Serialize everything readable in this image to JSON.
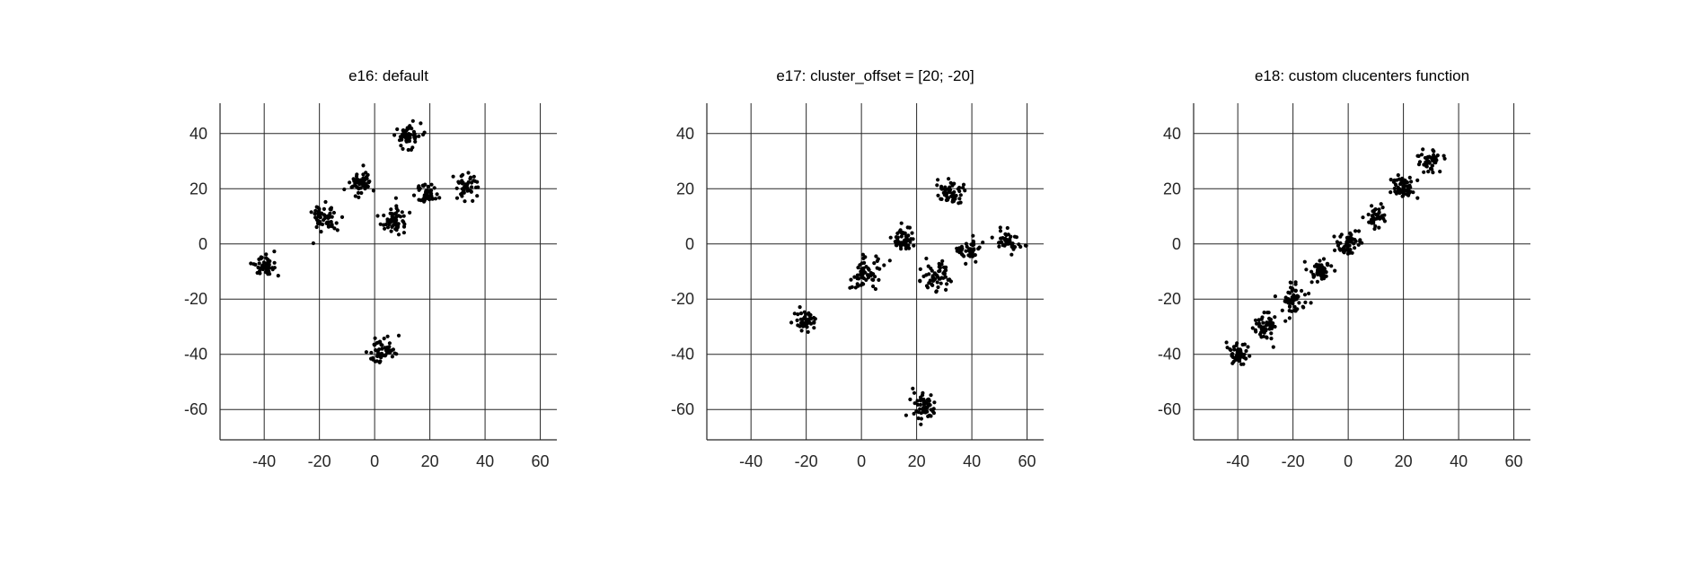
{
  "chart_data": [
    {
      "type": "scatter",
      "title": "e16: default",
      "xlabel": "",
      "ylabel": "",
      "xlim": [
        -56,
        66
      ],
      "ylim": [
        -71,
        51
      ],
      "xticks": [
        -40,
        -20,
        0,
        20,
        40,
        60
      ],
      "yticks": [
        40,
        20,
        0,
        -20,
        -40,
        -60
      ],
      "grid": true,
      "marker_color": "#000000",
      "clusters": [
        {
          "center": [
            -40,
            -8
          ],
          "spread": 2.2,
          "n": 45
        },
        {
          "center": [
            -18,
            10
          ],
          "spread": 2.8,
          "n": 55
        },
        {
          "center": [
            -5,
            22
          ],
          "spread": 2.2,
          "n": 55
        },
        {
          "center": [
            12,
            39
          ],
          "spread": 2.2,
          "n": 55
        },
        {
          "center": [
            7,
            9
          ],
          "spread": 2.6,
          "n": 60
        },
        {
          "center": [
            19,
            18
          ],
          "spread": 1.9,
          "n": 45
        },
        {
          "center": [
            33,
            21
          ],
          "spread": 2.2,
          "n": 45
        },
        {
          "center": [
            3,
            -39
          ],
          "spread": 2.4,
          "n": 55
        }
      ]
    },
    {
      "type": "scatter",
      "title": "e17: cluster_offset = [20; -20]",
      "xlabel": "",
      "ylabel": "",
      "xlim": [
        -56,
        66
      ],
      "ylim": [
        -71,
        51
      ],
      "xticks": [
        -40,
        -20,
        0,
        20,
        40,
        60
      ],
      "yticks": [
        40,
        20,
        0,
        -20,
        -40,
        -60
      ],
      "grid": true,
      "marker_color": "#000000",
      "clusters": [
        {
          "center": [
            -20,
            -28
          ],
          "spread": 2.2,
          "n": 45
        },
        {
          "center": [
            2,
            -10
          ],
          "spread": 2.8,
          "n": 55
        },
        {
          "center": [
            15,
            2
          ],
          "spread": 2.2,
          "n": 55
        },
        {
          "center": [
            32,
            19
          ],
          "spread": 2.2,
          "n": 55
        },
        {
          "center": [
            27,
            -11
          ],
          "spread": 2.6,
          "n": 60
        },
        {
          "center": [
            39,
            -2
          ],
          "spread": 1.9,
          "n": 45
        },
        {
          "center": [
            53,
            1
          ],
          "spread": 2.2,
          "n": 45
        },
        {
          "center": [
            23,
            -59
          ],
          "spread": 2.4,
          "n": 55
        }
      ]
    },
    {
      "type": "scatter",
      "title": "e18: custom clucenters function",
      "xlabel": "",
      "ylabel": "",
      "xlim": [
        -56,
        66
      ],
      "ylim": [
        -71,
        51
      ],
      "xticks": [
        -40,
        -20,
        0,
        20,
        40,
        60
      ],
      "yticks": [
        40,
        20,
        0,
        -20,
        -40,
        -60
      ],
      "grid": true,
      "marker_color": "#000000",
      "clusters": [
        {
          "center": [
            -40,
            -40
          ],
          "spread": 2.0,
          "n": 50
        },
        {
          "center": [
            -30,
            -30
          ],
          "spread": 2.2,
          "n": 55
        },
        {
          "center": [
            -20,
            -20
          ],
          "spread": 2.3,
          "n": 60
        },
        {
          "center": [
            -10,
            -10
          ],
          "spread": 2.2,
          "n": 50
        },
        {
          "center": [
            0,
            0
          ],
          "spread": 2.2,
          "n": 50
        },
        {
          "center": [
            10,
            10
          ],
          "spread": 1.8,
          "n": 40
        },
        {
          "center": [
            20,
            20
          ],
          "spread": 2.4,
          "n": 60
        },
        {
          "center": [
            30,
            30
          ],
          "spread": 2.0,
          "n": 45
        }
      ]
    }
  ]
}
